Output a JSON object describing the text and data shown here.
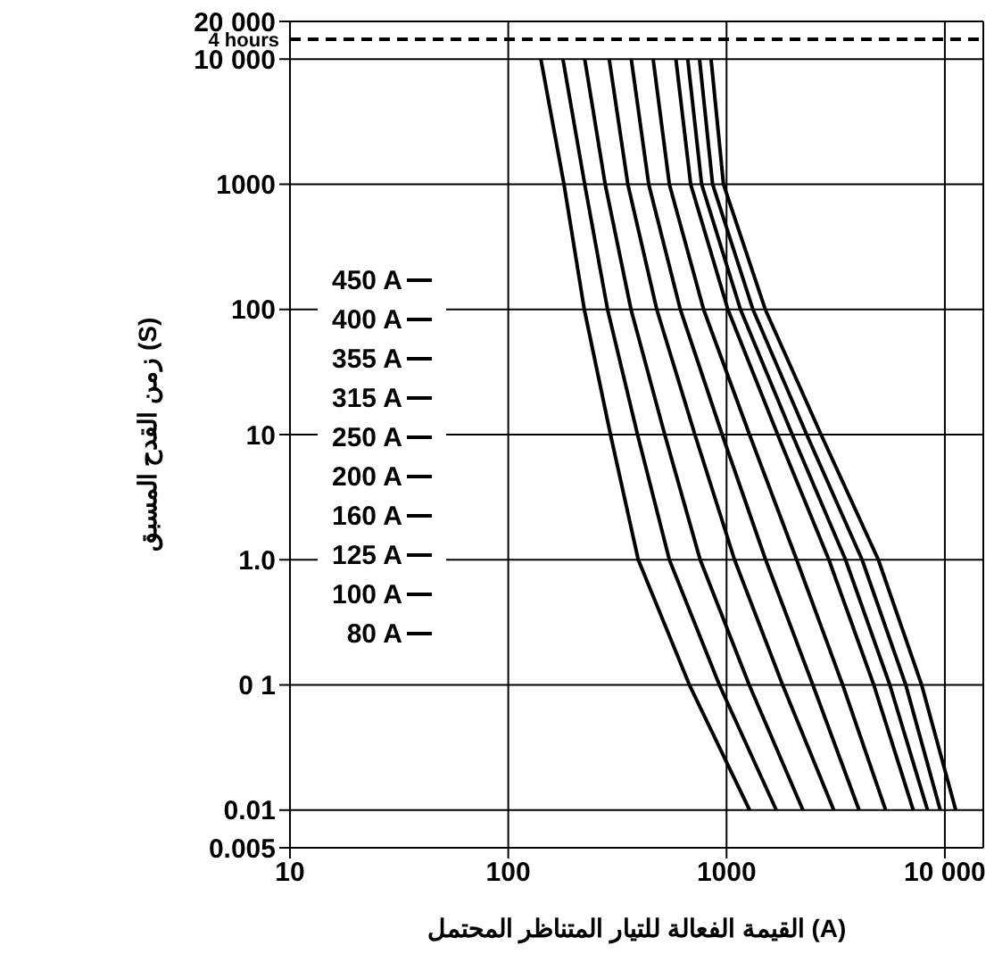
{
  "chart_data": {
    "type": "line",
    "xlabel": "القيمة الفعالة للتيار المتناظر المحتمل (A)",
    "ylabel": "زمن القدح المسبق (S)",
    "log": "xy",
    "grid": true,
    "legend": "left",
    "marker": "none",
    "line_style": "solid",
    "xlim": [
      10,
      15000
    ],
    "xticks": [
      10,
      100,
      1000,
      {
        "value": 10000,
        "label": "10 000"
      }
    ],
    "ylim": [
      0.005,
      20000
    ],
    "yticks": [
      0.005,
      0.01,
      {
        "value": 0.1,
        "label": "0 1"
      },
      {
        "value": 1,
        "label": "1.0"
      },
      10,
      100,
      1000,
      {
        "value": 10000,
        "label": "10 000"
      },
      {
        "value": 20000,
        "label": "20 000"
      }
    ],
    "ref_lines": [
      {
        "axis": "y",
        "value": 14400,
        "label": "4 hours",
        "line_style": "dashed",
        "color": "#000000"
      }
    ],
    "series": [
      {
        "name": "450 A",
        "color": "#000000",
        "x": [
          849,
          968,
          1504,
          2710,
          4959,
          7830,
          11220
        ],
        "values": [
          10000,
          1000,
          100,
          10,
          1,
          0.1,
          0.01
        ]
      },
      {
        "name": "400 A",
        "color": "#000000",
        "x": [
          752,
          863,
          1321,
          2329,
          4178,
          6622,
          9528
        ],
        "values": [
          10000,
          1000,
          100,
          10,
          1,
          0.1,
          0.01
        ]
      },
      {
        "name": "355 A",
        "color": "#000000",
        "x": [
          664,
          769,
          1158,
          2000,
          3508,
          5597,
          8331
        ],
        "values": [
          10000,
          1000,
          100,
          10,
          1,
          0.1,
          0.01
        ]
      },
      {
        "name": "315 A",
        "color": "#000000",
        "x": [
          586,
          685,
          1014,
          1714,
          2943,
          4725,
          7167
        ],
        "values": [
          10000,
          1000,
          100,
          10,
          1,
          0.1,
          0.01
        ]
      },
      {
        "name": "250 A",
        "color": "#000000",
        "x": [
          461,
          547,
          785,
          1274,
          2094,
          3404,
          5358
        ],
        "values": [
          10000,
          1000,
          100,
          10,
          1,
          0.1,
          0.01
        ]
      },
      {
        "name": "200 A",
        "color": "#000000",
        "x": [
          366,
          440,
          614,
          955,
          1510,
          2485,
          4046
        ],
        "values": [
          10000,
          1000,
          100,
          10,
          1,
          0.1,
          0.01
        ]
      },
      {
        "name": "160 A",
        "color": "#000000",
        "x": [
          290,
          353,
          479,
          716,
          1088,
          1806,
          3099
        ],
        "values": [
          10000,
          1000,
          100,
          10,
          1,
          0.1,
          0.01
        ]
      },
      {
        "name": "125 A",
        "color": "#000000",
        "x": [
          224,
          278,
          365,
          521,
          757,
          1270,
          2238
        ],
        "values": [
          10000,
          1000,
          100,
          10,
          1,
          0.1,
          0.01
        ]
      },
      {
        "name": "100 A",
        "color": "#000000",
        "x": [
          178,
          224,
          285,
          391,
          547,
          927,
          1690
        ],
        "values": [
          10000,
          1000,
          100,
          10,
          1,
          0.1,
          0.01
        ]
      },
      {
        "name": "80 A",
        "color": "#000000",
        "x": [
          141,
          180,
          223,
          294,
          394,
          676,
          1276
        ],
        "values": [
          10000,
          1000,
          100,
          10,
          1,
          0.1,
          0.01
        ]
      }
    ]
  }
}
